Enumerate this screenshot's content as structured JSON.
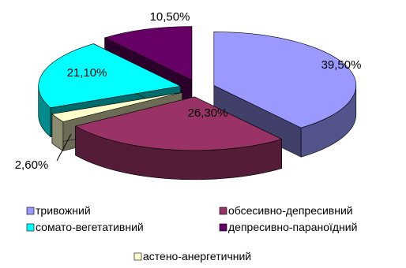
{
  "chart_data": {
    "type": "pie",
    "style": "3d-exploded",
    "categories": [
      "тривожний",
      "обсесивно-депресивний",
      "астено-анергетичний",
      "сомато-вегетативний",
      "депресивно-параноїдний"
    ],
    "values": [
      39.5,
      26.3,
      2.6,
      21.1,
      10.5
    ],
    "data_labels": [
      "39,50%",
      "26,30%",
      "2,60%",
      "21,10%",
      "10,50%"
    ],
    "colors": [
      "#9999ff",
      "#993366",
      "#ffffcc",
      "#00ffff",
      "#660066"
    ],
    "legend": {
      "placement": "bottom",
      "entries": [
        {
          "label": "тривожний",
          "color": "#9999ff"
        },
        {
          "label": "обсесивно-депресивний",
          "color": "#993366"
        },
        {
          "label": "сомато-вегетативний",
          "color": "#00ffff"
        },
        {
          "label": "депресивно-параноїдний",
          "color": "#660066"
        },
        {
          "label": "астено-анергетичний",
          "color": "#ffffcc"
        }
      ]
    }
  }
}
